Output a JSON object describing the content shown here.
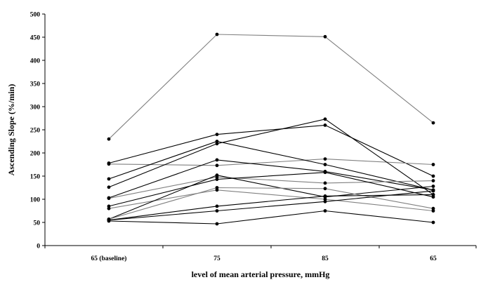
{
  "chart_data": {
    "type": "line",
    "title": "",
    "xlabel": "level of mean arterial pressure, mmHg",
    "ylabel": "Ascending Slope (%/min)",
    "categories": [
      "65 (baseline)",
      "75",
      "85",
      "65"
    ],
    "ylim": [
      0,
      500
    ],
    "yticks": [
      0,
      50,
      100,
      150,
      200,
      250,
      300,
      350,
      400,
      450,
      500
    ],
    "grid": false,
    "legend": "none",
    "colors": {
      "dark": "#000000",
      "gray": "#808080"
    },
    "series": [
      {
        "values": [
          230,
          456,
          451,
          265
        ],
        "color": "gray"
      },
      {
        "values": [
          178,
          240,
          260,
          150
        ],
        "color": "dark"
      },
      {
        "values": [
          176,
          173,
          187,
          175
        ],
        "color": "gray"
      },
      {
        "values": [
          144,
          225,
          175,
          120
        ],
        "color": "dark"
      },
      {
        "values": [
          126,
          220,
          273,
          110
        ],
        "color": "dark"
      },
      {
        "values": [
          103,
          185,
          160,
          120
        ],
        "color": "dark"
      },
      {
        "values": [
          102,
          148,
          135,
          140
        ],
        "color": "gray"
      },
      {
        "values": [
          85,
          143,
          158,
          105
        ],
        "color": "dark"
      },
      {
        "values": [
          80,
          120,
          100,
          75
        ],
        "color": "gray"
      },
      {
        "values": [
          57,
          152,
          105,
          128
        ],
        "color": "dark"
      },
      {
        "values": [
          57,
          125,
          123,
          80
        ],
        "color": "gray"
      },
      {
        "values": [
          55,
          85,
          107,
          110
        ],
        "color": "dark"
      },
      {
        "values": [
          55,
          75,
          95,
          118
        ],
        "color": "dark"
      },
      {
        "values": [
          53,
          47,
          75,
          50
        ],
        "color": "dark"
      }
    ]
  }
}
